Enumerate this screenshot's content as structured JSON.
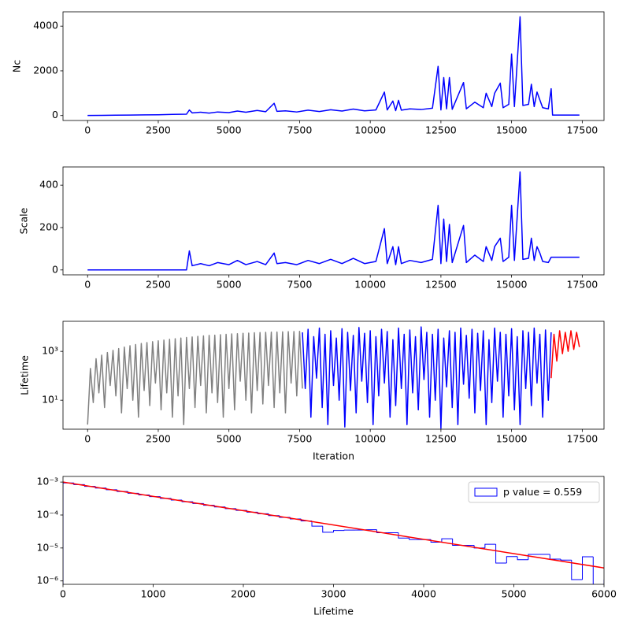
{
  "chart_data": [
    {
      "type": "line",
      "ylabel": "Nc",
      "x": [
        0,
        500,
        1000,
        1500,
        2000,
        2500,
        3000,
        3500,
        3600,
        3700,
        4000,
        4300,
        4600,
        5000,
        5300,
        5600,
        6000,
        6300,
        6600,
        6700,
        7000,
        7400,
        7800,
        8200,
        8600,
        9000,
        9400,
        9800,
        10200,
        10500,
        10600,
        10800,
        10900,
        11000,
        11100,
        11400,
        11800,
        12200,
        12400,
        12500,
        12600,
        12700,
        12800,
        12900,
        13300,
        13400,
        13700,
        14000,
        14100,
        14300,
        14400,
        14600,
        14700,
        14900,
        15000,
        15100,
        15300,
        15400,
        15600,
        15700,
        15800,
        15900,
        16000,
        16100,
        16300,
        16400,
        16450,
        17400
      ],
      "series": [
        {
          "color": "#0000ff",
          "values": [
            5,
            10,
            15,
            20,
            30,
            35,
            50,
            60,
            250,
            120,
            150,
            110,
            160,
            130,
            200,
            150,
            230,
            170,
            550,
            190,
            210,
            160,
            240,
            180,
            260,
            200,
            290,
            210,
            250,
            1050,
            250,
            650,
            220,
            680,
            240,
            300,
            270,
            330,
            2200,
            250,
            1700,
            300,
            1700,
            280,
            1480,
            300,
            600,
            350,
            1000,
            400,
            1000,
            1450,
            350,
            500,
            2750,
            400,
            4420,
            450,
            500,
            1400,
            400,
            1050,
            700,
            350,
            300,
            1200,
            20,
            20
          ]
        }
      ],
      "xlim": [
        -870,
        18270
      ],
      "xticks": [
        0,
        2500,
        5000,
        7500,
        10000,
        12500,
        15000,
        17500
      ],
      "ylim": [
        -221,
        4641
      ],
      "yticks": [
        0,
        2000,
        4000
      ]
    },
    {
      "type": "line",
      "ylabel": "Scale",
      "x": [
        0,
        500,
        1000,
        1500,
        2000,
        2500,
        3000,
        3500,
        3600,
        3700,
        4000,
        4300,
        4600,
        5000,
        5300,
        5600,
        6000,
        6300,
        6600,
        6700,
        7000,
        7400,
        7800,
        8200,
        8600,
        9000,
        9400,
        9800,
        10200,
        10500,
        10600,
        10800,
        10900,
        11000,
        11100,
        11400,
        11800,
        12200,
        12400,
        12500,
        12600,
        12700,
        12800,
        12900,
        13300,
        13400,
        13700,
        14000,
        14100,
        14300,
        14400,
        14600,
        14700,
        14900,
        15000,
        15100,
        15300,
        15400,
        15600,
        15700,
        15800,
        15900,
        16000,
        16100,
        16300,
        16400,
        16450,
        17400
      ],
      "series": [
        {
          "color": "#0000ff",
          "values": [
            0,
            0,
            0,
            0,
            0,
            0,
            0,
            0,
            90,
            20,
            30,
            20,
            35,
            25,
            45,
            25,
            40,
            25,
            80,
            30,
            35,
            25,
            45,
            30,
            50,
            30,
            55,
            30,
            40,
            195,
            30,
            110,
            25,
            110,
            30,
            45,
            35,
            50,
            305,
            30,
            240,
            40,
            215,
            35,
            210,
            35,
            70,
            40,
            110,
            45,
            110,
            150,
            40,
            60,
            305,
            45,
            463,
            50,
            55,
            150,
            45,
            110,
            80,
            40,
            35,
            60,
            60,
            60
          ]
        }
      ],
      "xlim": [
        -870,
        18270
      ],
      "xticks": [
        0,
        2500,
        5000,
        7500,
        10000,
        12500,
        15000,
        17500
      ],
      "ylim": [
        -23,
        486
      ],
      "yticks": [
        0,
        200,
        400
      ]
    },
    {
      "type": "line",
      "ylabel": "Lifetime",
      "xlabel": "Iteration",
      "yscale": "log",
      "series": [
        {
          "color": "#808080",
          "x": [
            0,
            100,
            200,
            300,
            400,
            500,
            600,
            700,
            800,
            900,
            1000,
            1100,
            1200,
            1300,
            1400,
            1500,
            1600,
            1700,
            1800,
            1900,
            2000,
            2100,
            2200,
            2300,
            2400,
            2500,
            2600,
            2700,
            2800,
            2900,
            3000,
            3100,
            3200,
            3300,
            3400,
            3500,
            3600,
            3700,
            3800,
            3900,
            4000,
            4100,
            4200,
            4300,
            4400,
            4500,
            4600,
            4700,
            4800,
            4900,
            5000,
            5100,
            5200,
            5300,
            5400,
            5500,
            5600,
            5700,
            5800,
            5900,
            6000,
            6100,
            6200,
            6300,
            6400,
            6500,
            6600,
            6700,
            6800,
            6900,
            7000,
            7100,
            7200,
            7300,
            7400,
            7500,
            7600
          ],
          "values": [
            1,
            200,
            8,
            500,
            20,
            700,
            5,
            900,
            40,
            1100,
            15,
            1300,
            3,
            1500,
            30,
            1700,
            10,
            1900,
            2,
            2100,
            25,
            2300,
            6,
            2500,
            50,
            2700,
            4,
            2900,
            20,
            3100,
            2,
            3300,
            15,
            3500,
            1,
            3700,
            30,
            3900,
            5,
            4100,
            40,
            4300,
            3,
            4500,
            20,
            4600,
            8,
            4800,
            2,
            5000,
            30,
            5200,
            4,
            5300,
            60,
            5500,
            10,
            5600,
            3,
            5800,
            25,
            5900,
            7,
            6000,
            40,
            6100,
            5,
            6200,
            20,
            6300,
            3,
            6400,
            50,
            6500,
            15,
            6600,
            30
          ]
        },
        {
          "color": "#0000ff",
          "x": [
            7600,
            7700,
            7800,
            7900,
            8000,
            8100,
            8200,
            8300,
            8400,
            8500,
            8600,
            8700,
            8800,
            8900,
            9000,
            9100,
            9200,
            9300,
            9400,
            9500,
            9600,
            9700,
            9800,
            9900,
            10000,
            10100,
            10200,
            10300,
            10400,
            10500,
            10600,
            10700,
            10800,
            10900,
            11000,
            11100,
            11200,
            11300,
            11400,
            11500,
            11600,
            11700,
            11800,
            11900,
            12000,
            12100,
            12200,
            12300,
            12400,
            12500,
            12600,
            12700,
            12800,
            12900,
            13000,
            13100,
            13200,
            13300,
            13400,
            13500,
            13600,
            13700,
            13800,
            13900,
            14000,
            14100,
            14200,
            14300,
            14400,
            14500,
            14600,
            14700,
            14800,
            14900,
            15000,
            15100,
            15200,
            15300,
            15400,
            15500,
            15600,
            15700,
            15800,
            15900,
            16000,
            16100,
            16200,
            16300,
            16400
          ],
          "values": [
            6000,
            30,
            8000,
            2,
            4000,
            80,
            9000,
            5,
            5000,
            1,
            7000,
            40,
            3500,
            10,
            8500,
            0.8,
            6000,
            25,
            4500,
            3,
            9500,
            60,
            5500,
            8,
            7000,
            1,
            4000,
            15,
            8000,
            50,
            6500,
            2,
            3000,
            6,
            9000,
            30,
            5000,
            1,
            7500,
            20,
            4000,
            4,
            10000,
            70,
            6000,
            2,
            5000,
            10,
            8000,
            0.7,
            3500,
            35,
            7000,
            5,
            6000,
            1,
            9000,
            45,
            4500,
            12,
            8000,
            3,
            5500,
            25,
            7000,
            1,
            3000,
            8,
            9000,
            60,
            6000,
            2,
            5000,
            15,
            8500,
            4,
            4000,
            1,
            7000,
            30,
            6000,
            6,
            9000,
            50,
            5000,
            2,
            7500,
            10,
            6000
          ]
        },
        {
          "color": "#ff0000",
          "x": [
            16400,
            16500,
            16600,
            16700,
            16800,
            16900,
            17000,
            17100,
            17200,
            17300,
            17400
          ],
          "values": [
            80,
            5000,
            400,
            7000,
            800,
            6000,
            1000,
            7000,
            1200,
            6000,
            1500
          ]
        }
      ],
      "xlim": [
        -870,
        18270
      ],
      "xticks": [
        0,
        2500,
        5000,
        7500,
        10000,
        12500,
        15000,
        17500
      ],
      "ylim": [
        0.65,
        17000
      ],
      "yticks": [
        {
          "value": 10,
          "label": "10¹"
        },
        {
          "value": 1000,
          "label": "10³"
        }
      ]
    },
    {
      "type": "histogram",
      "xlabel": "Lifetime",
      "yscale": "log",
      "legend": "upper right",
      "bins": [
        0,
        120,
        240,
        360,
        480,
        600,
        720,
        840,
        960,
        1080,
        1200,
        1320,
        1440,
        1560,
        1680,
        1800,
        1920,
        2040,
        2160,
        2280,
        2400,
        2520,
        2640,
        2760,
        2880,
        3000,
        3120,
        3240,
        3360,
        3480,
        3600,
        3720,
        3840,
        3960,
        4080,
        4200,
        4320,
        4440,
        4560,
        4680,
        4800,
        4920,
        5040,
        5160,
        5280,
        5400,
        5520,
        5640,
        5760,
        5880,
        6000
      ],
      "series": [
        {
          "name": "p value = 0.559",
          "color": "#0000ff",
          "values": [
            0.00094,
            0.000835,
            0.00074,
            0.000657,
            0.000583,
            0.000517,
            0.000458,
            0.000407,
            0.000361,
            0.00032,
            0.000284,
            0.000252,
            0.000223,
            0.000198,
            0.000176,
            0.000156,
            0.000138,
            0.000122,
            0.000109,
            9.6e-05,
            8.5e-05,
            7.6e-05,
            6.6e-05,
            4.6e-05,
            3e-05,
            3.4e-05,
            3.5e-05,
            3.5e-05,
            3.6e-05,
            2.9e-05,
            2.9e-05,
            2e-05,
            1.8e-05,
            1.8e-05,
            1.5e-05,
            1.9e-05,
            1.2e-05,
            1.2e-05,
            1e-05,
            1.3e-05,
            3.5e-06,
            5.5e-06,
            4.4e-06,
            6.4e-06,
            6.4e-06,
            4.6e-06,
            4.3e-06,
            1.1e-06,
            5.4e-06,
            0,
            1.1e-06
          ]
        }
      ],
      "fit": {
        "color": "#ff0000",
        "x": [
          0,
          6000
        ],
        "values": [
          0.001,
          2.48e-06
        ]
      },
      "xlim": [
        0,
        6000
      ],
      "xticks": [
        0,
        1000,
        2000,
        3000,
        4000,
        5000,
        6000
      ],
      "ylim": [
        7.9e-07,
        0.00148
      ],
      "yticks": [
        {
          "value": 0.001,
          "label": "10⁻³"
        },
        {
          "value": 0.0001,
          "label": "10⁻⁴"
        },
        {
          "value": 1e-05,
          "label": "10⁻⁵"
        },
        {
          "value": 1e-06,
          "label": "10⁻⁶"
        }
      ]
    }
  ]
}
